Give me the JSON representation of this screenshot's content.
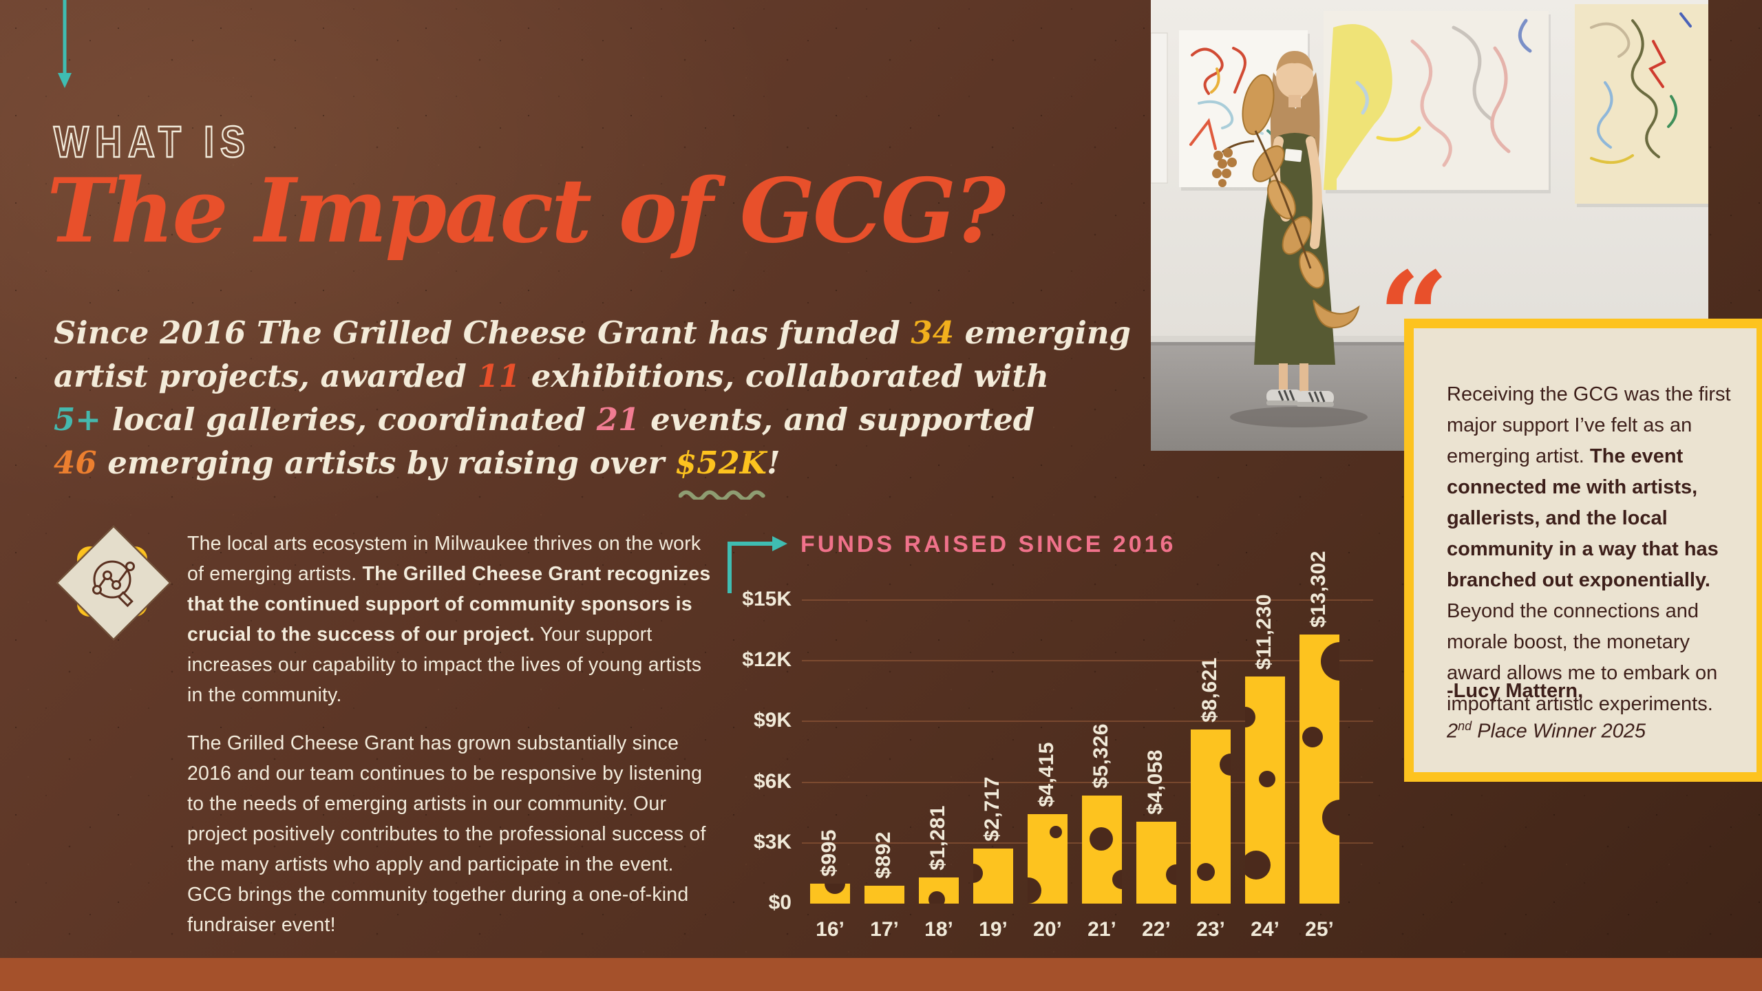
{
  "colors": {
    "background": "#5c3626",
    "cream": "#f3ebd9",
    "title_orange": "#e8502b",
    "gold": "#f2b01d",
    "yellow": "#fdc31f",
    "teal": "#45b9ae",
    "pink": "#f27d93",
    "orange": "#ec7f2f",
    "sage": "#8e9d72",
    "rust_bar": "#a5512b",
    "card_bg": "#ebe3d1",
    "card_text": "#3d1f1a"
  },
  "header": {
    "eyebrow": "WHAT IS",
    "title": "The Impact of GCG?"
  },
  "intro": {
    "lines": [
      [
        {
          "t": "Since 2016 The Grilled Cheese Grant has funded ",
          "c": "cream"
        },
        {
          "t": "34",
          "c": "gold"
        },
        {
          "t": " emerging",
          "c": "cream"
        }
      ],
      [
        {
          "t": "artist projects, awarded ",
          "c": "cream"
        },
        {
          "t": "11",
          "c": "orangered"
        },
        {
          "t": " exhibitions, collaborated with",
          "c": "cream"
        }
      ],
      [
        {
          "t": "5+",
          "c": "teal"
        },
        {
          "t": " local galleries, coordinated ",
          "c": "cream"
        },
        {
          "t": "21",
          "c": "pink"
        },
        {
          "t": " events, and supported",
          "c": "cream"
        }
      ],
      [
        {
          "t": "46",
          "c": "orange"
        },
        {
          "t": " emerging artists by raising over ",
          "c": "cream"
        },
        {
          "t": "$52K",
          "c": "yellow",
          "squiggle": true
        },
        {
          "t": "!",
          "c": "cream"
        }
      ]
    ]
  },
  "body": {
    "paragraphs": [
      {
        "segments": [
          {
            "t": "The local arts ecosystem in Milwaukee thrives on the work of emerging artists. ",
            "b": false
          },
          {
            "t": "The Grilled Cheese Grant recognizes that the continued support of community sponsors is crucial to the success of our project.",
            "b": true
          },
          {
            "t": " Your support increases our capability to impact the lives of young artists in the community.",
            "b": false
          }
        ]
      },
      {
        "segments": [
          {
            "t": "The Grilled Cheese Grant has grown substantially since 2016 and our team continues to be responsive by listening to the needs of emerging artists in our community. Our project positively contributes to the professional success of the many artists who apply and participate in the event. GCG brings the community together during a one-of-kind fundraiser event!",
            "b": false
          }
        ]
      }
    ]
  },
  "chart_data": {
    "type": "bar",
    "title": "FUNDS RAISED SINCE 2016",
    "categories": [
      "16’",
      "17’",
      "18’",
      "19’",
      "20’",
      "21’",
      "22’",
      "23’",
      "24’",
      "25’"
    ],
    "values": [
      995,
      892,
      1281,
      2717,
      4415,
      5326,
      4058,
      8621,
      11230,
      13302
    ],
    "value_labels": [
      "$995",
      "$892",
      "$1,281",
      "$2,717",
      "$4,415",
      "$5,326",
      "$4,058",
      "$8,621",
      "$11,230",
      "$13,302"
    ],
    "yticks": [
      {
        "label": "$15K",
        "value": 15000
      },
      {
        "label": "$12K",
        "value": 12000
      },
      {
        "label": "$9K",
        "value": 9000
      },
      {
        "label": "$6K",
        "value": 6000
      },
      {
        "label": "$3K",
        "value": 3000
      },
      {
        "label": "$0",
        "value": 0
      }
    ],
    "ylim": [
      0,
      15000
    ],
    "grid": true,
    "legend": null,
    "bar_color": "#fdc31f"
  },
  "quote": {
    "mark": "“",
    "segments": [
      {
        "t": "Receiving the GCG was the first major support I’ve felt as an emerging artist. ",
        "b": false
      },
      {
        "t": "The event connected me with artists, gallerists, and the local community in a way that has branched out exponentially.",
        "b": true
      },
      {
        "t": " Beyond the connections and morale boost, the monetary award allows me to embark on important artistic experiments.",
        "b": false
      }
    ],
    "attribution_name": "-Lucy Mattern,",
    "attribution_title": {
      "prefix": "2",
      "sup": "nd",
      "rest": " Place Winner 2025"
    }
  }
}
